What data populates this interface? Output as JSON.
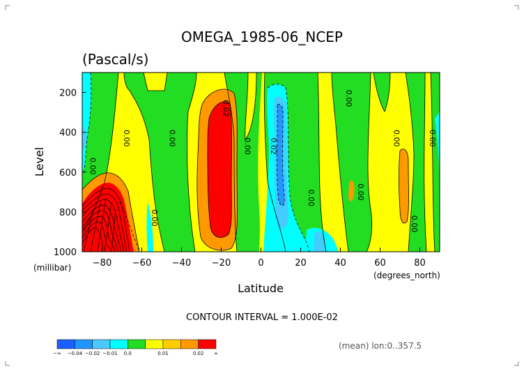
{
  "chart_data": {
    "type": "contour",
    "title": "OMEGA_1985-06_NCEP",
    "units": "(Pascal/s)",
    "xlabel": "Latitude",
    "x_unit_label": "(degrees_north)",
    "ylabel": "Level",
    "y_unit_label": "(millibar)",
    "xlim": [
      -90,
      90
    ],
    "ylim": [
      1000,
      100
    ],
    "x_ticks": [
      -80,
      -60,
      -40,
      -20,
      0,
      20,
      40,
      60,
      80
    ],
    "y_ticks": [
      200,
      400,
      600,
      800,
      1000
    ],
    "contour_interval_label": "CONTOUR INTERVAL = 1.000E-02",
    "averaging_label": "(mean) lon:0..357.5",
    "contour_labels": [
      {
        "text": "0.00",
        "lat": -69,
        "level": 430
      },
      {
        "text": "0.00",
        "lat": -46,
        "level": 430
      },
      {
        "text": "0.00",
        "lat": -86,
        "level": 570
      },
      {
        "text": "0.00",
        "lat": -55,
        "level": 830
      },
      {
        "text": "0.02",
        "lat": -19,
        "level": 280
      },
      {
        "text": "0.00",
        "lat": -8,
        "level": 470
      },
      {
        "text": "0.02",
        "lat": 5,
        "level": 470
      },
      {
        "text": "0.00",
        "lat": 24,
        "level": 730
      },
      {
        "text": "0.00",
        "lat": 43,
        "level": 230
      },
      {
        "text": "0.00",
        "lat": 49,
        "level": 700
      },
      {
        "text": "0.00",
        "lat": 67,
        "level": 430
      },
      {
        "text": "0.00",
        "lat": 85,
        "level": 430
      },
      {
        "text": "0.00",
        "lat": 76,
        "level": 860
      }
    ],
    "colorbar": {
      "colors": [
        "#1a5fff",
        "#2196ff",
        "#4cc8ff",
        "#00ffff",
        "#22dd22",
        "#ffff00",
        "#ffcc00",
        "#ff9900",
        "#ff0000"
      ],
      "labels": [
        "-∞",
        "-0.04",
        "-0.02",
        "-0.01",
        "0.0",
        "0.01",
        "0.02",
        "∞"
      ]
    },
    "palette": {
      "yellow": "#ffff00",
      "green": "#22dd22",
      "cyan": "#00ffff",
      "lightblue": "#44ccff",
      "blue": "#2196ff",
      "orange": "#ff9900",
      "red": "#ff0000"
    }
  }
}
